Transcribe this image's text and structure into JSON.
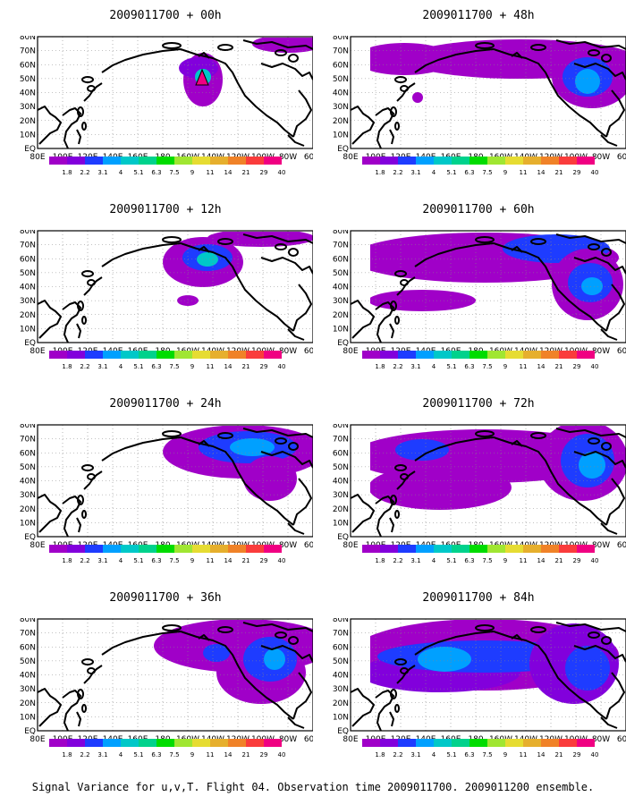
{
  "colors": {
    "scale": [
      "#a000c8",
      "#8200dc",
      "#1e3cff",
      "#00a0ff",
      "#00c8c8",
      "#00d28c",
      "#00dc00",
      "#a0e632",
      "#e6dc32",
      "#e6af2d",
      "#f08228",
      "#fa3c3c",
      "#f00082"
    ]
  },
  "axes": {
    "lat_labels": [
      "80N",
      "70N",
      "60N",
      "50N",
      "40N",
      "30N",
      "20N",
      "10N",
      "EQ"
    ],
    "lon_labels": [
      "80E",
      "100E",
      "120E",
      "140E",
      "160E",
      "180",
      "160W",
      "140W",
      "120W",
      "100W",
      "80W",
      "60W"
    ]
  },
  "colorbar": {
    "labels": [
      "1.8",
      "2.2",
      "3.1",
      "4",
      "5.1",
      "6.3",
      "7.5",
      "9",
      "11",
      "14",
      "21",
      "29",
      "40"
    ]
  },
  "panels": [
    {
      "title": "2009011700 + 00h"
    },
    {
      "title": "2009011700 + 48h"
    },
    {
      "title": "2009011700 + 12h"
    },
    {
      "title": "2009011700 + 60h"
    },
    {
      "title": "2009011700 + 24h"
    },
    {
      "title": "2009011700 + 72h"
    },
    {
      "title": "2009011700 + 36h"
    },
    {
      "title": "2009011700 + 84h"
    }
  ],
  "footer": "Signal Variance for u,v,T. Flight 04. Observation time 2009011700. 2009011200 ensemble."
}
